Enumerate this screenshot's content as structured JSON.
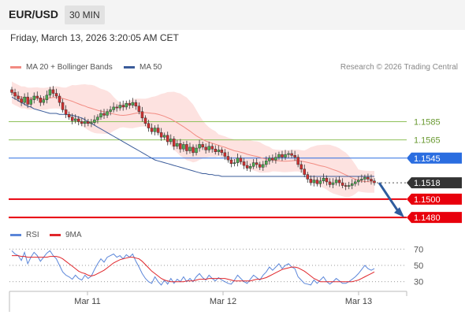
{
  "header": {
    "symbol": "EUR/USD",
    "timeframe": "30 MIN"
  },
  "datetime": "Friday, March 13, 2026 3:20:05 AM CET",
  "legend": [
    {
      "name": "MA 20 + Bollinger Bands",
      "color": "#f28b82"
    },
    {
      "name": "MA 50",
      "color": "#3a5b9a"
    }
  ],
  "rsi_legend": [
    {
      "name": "RSI",
      "color": "#5b86d9"
    },
    {
      "name": "9MA",
      "color": "#e0262b"
    }
  ],
  "credit": "Research © 2026 Trading Central",
  "colors": {
    "support": "#e8000c",
    "pivot": "#2a6de0",
    "resistance": "#8fc15a",
    "last": "#333333",
    "bull": "#4caf50",
    "bear": "#d32f2f"
  },
  "chart_data": [
    {
      "type": "candlestick",
      "x_ticks": [
        "Mar 11",
        "Mar 12",
        "Mar 13"
      ],
      "ylim": [
        1.1468,
        1.1632
      ],
      "levels": [
        {
          "value": 1.1585,
          "label": "1.1585",
          "kind": "resistance"
        },
        {
          "value": 1.1565,
          "label": "1.1565",
          "kind": "resistance"
        },
        {
          "value": 1.1545,
          "label": "1.1545",
          "kind": "pivot"
        },
        {
          "value": 1.1518,
          "label": "1.1518",
          "kind": "last"
        },
        {
          "value": 1.15,
          "label": "1.1500",
          "kind": "support"
        },
        {
          "value": 1.148,
          "label": "1.1480",
          "kind": "support"
        }
      ],
      "close": [
        1.1617,
        1.1613,
        1.161,
        1.1606,
        1.1612,
        1.1604,
        1.1609,
        1.1613,
        1.1611,
        1.1606,
        1.1609,
        1.1614,
        1.162,
        1.1616,
        1.1613,
        1.1606,
        1.1598,
        1.1593,
        1.159,
        1.1586,
        1.1588,
        1.1585,
        1.1583,
        1.1585,
        1.1583,
        1.1584,
        1.1587,
        1.159,
        1.1594,
        1.1592,
        1.1596,
        1.1598,
        1.1601,
        1.16,
        1.1603,
        1.1601,
        1.1605,
        1.1603,
        1.1606,
        1.1602,
        1.1596,
        1.1589,
        1.1583,
        1.1578,
        1.1574,
        1.1578,
        1.1573,
        1.1568,
        1.157,
        1.1563,
        1.1566,
        1.1558,
        1.1561,
        1.1555,
        1.156,
        1.1553,
        1.1557,
        1.1551,
        1.1556,
        1.156,
        1.1557,
        1.1554,
        1.1558,
        1.1555,
        1.1552,
        1.1554,
        1.1551,
        1.1547,
        1.1543,
        1.1539,
        1.154,
        1.1545,
        1.1541,
        1.1537,
        1.1534,
        1.1536,
        1.154,
        1.1538,
        1.1535,
        1.1538,
        1.1542,
        1.1545,
        1.1543,
        1.1546,
        1.1549,
        1.1546,
        1.1549,
        1.155,
        1.1548,
        1.1546,
        1.1538,
        1.1533,
        1.1527,
        1.1522,
        1.1518,
        1.1521,
        1.1517,
        1.152,
        1.1523,
        1.1519,
        1.1516,
        1.1518,
        1.1521,
        1.1518,
        1.1515,
        1.1514,
        1.1515,
        1.1517,
        1.1519,
        1.1521,
        1.1522,
        1.1524,
        1.1522,
        1.152,
        1.1518
      ],
      "ma50": [
        1.1612,
        1.161,
        1.1608,
        1.1606,
        1.1604,
        1.1602,
        1.1601,
        1.1599,
        1.1598,
        1.1597,
        1.1596,
        1.1595,
        1.1594,
        1.1594,
        1.1594,
        1.1593,
        1.1593,
        1.1593,
        1.1592,
        1.1592,
        1.1591,
        1.159,
        1.1589,
        1.1587,
        1.1585,
        1.1583,
        1.1581,
        1.1579,
        1.1577,
        1.1575,
        1.1573,
        1.1571,
        1.1569,
        1.1567,
        1.1565,
        1.1563,
        1.1561,
        1.1559,
        1.1557,
        1.1555,
        1.1553,
        1.1551,
        1.1549,
        1.1547,
        1.1545,
        1.1543,
        1.1542,
        1.1541,
        1.154,
        1.1539,
        1.1538,
        1.1537,
        1.1536,
        1.1535,
        1.1534,
        1.1533,
        1.1532,
        1.1531,
        1.153,
        1.1529,
        1.1528,
        1.1528,
        1.1527,
        1.1527,
        1.1526,
        1.1526,
        1.1525,
        1.1525,
        1.1525,
        1.1525,
        1.1525,
        1.1525,
        1.1525,
        1.1525,
        1.1525,
        1.1525,
        1.1525,
        1.1525,
        1.1525,
        1.1525,
        1.1525,
        1.1525,
        1.1525,
        1.1525,
        1.1525,
        1.1525,
        1.1525,
        1.1525,
        1.1525,
        1.1525,
        1.1525,
        1.1525,
        1.1525,
        1.1525,
        1.1525,
        1.1525,
        1.1525,
        1.1525,
        1.1525,
        1.1525,
        1.1525,
        1.1525,
        1.1525,
        1.1525,
        1.1525,
        1.1525,
        1.1525,
        1.1525,
        1.1525,
        1.1525,
        1.1525,
        1.1525,
        1.1525,
        1.1525,
        1.1525
      ],
      "rsi": {
        "ticks": [
          70,
          50,
          30
        ],
        "ylim": [
          22,
          78
        ],
        "rsi": [
          68,
          64,
          62,
          56,
          66,
          52,
          60,
          66,
          62,
          55,
          60,
          65,
          68,
          62,
          58,
          50,
          42,
          38,
          36,
          33,
          38,
          34,
          32,
          38,
          34,
          37,
          45,
          52,
          58,
          54,
          60,
          62,
          64,
          60,
          62,
          58,
          63,
          60,
          64,
          55,
          48,
          40,
          34,
          30,
          28,
          36,
          30,
          26,
          32,
          27,
          34,
          28,
          33,
          30,
          36,
          30,
          34,
          30,
          36,
          40,
          35,
          32,
          38,
          34,
          31,
          35,
          32,
          30,
          28,
          27,
          32,
          38,
          34,
          30,
          28,
          33,
          38,
          35,
          32,
          38,
          42,
          48,
          44,
          48,
          52,
          46,
          50,
          52,
          48,
          46,
          36,
          32,
          28,
          27,
          26,
          32,
          28,
          32,
          36,
          30,
          27,
          30,
          34,
          31,
          28,
          28,
          30,
          33,
          36,
          40,
          45,
          50,
          46,
          44,
          46
        ],
        "ma9": [
          62,
          62,
          62,
          61,
          61,
          60,
          60,
          60,
          60,
          60,
          60,
          60,
          61,
          61,
          61,
          60,
          58,
          55,
          52,
          49,
          46,
          43,
          41,
          40,
          38,
          37,
          38,
          40,
          42,
          44,
          47,
          50,
          53,
          55,
          57,
          58,
          59,
          60,
          60,
          59,
          58,
          55,
          51,
          47,
          43,
          40,
          37,
          34,
          32,
          31,
          30,
          30,
          30,
          30,
          30,
          31,
          31,
          31,
          32,
          33,
          33,
          33,
          34,
          34,
          34,
          34,
          34,
          34,
          33,
          32,
          31,
          31,
          31,
          31,
          31,
          31,
          32,
          33,
          33,
          34,
          35,
          37,
          39,
          41,
          43,
          45,
          46,
          47,
          48,
          48,
          47,
          45,
          43,
          40,
          37,
          34,
          32,
          30,
          30,
          30,
          30,
          30,
          30,
          30,
          30,
          30,
          30,
          30,
          31,
          32,
          34,
          36,
          38,
          40,
          42
        ]
      }
    }
  ]
}
